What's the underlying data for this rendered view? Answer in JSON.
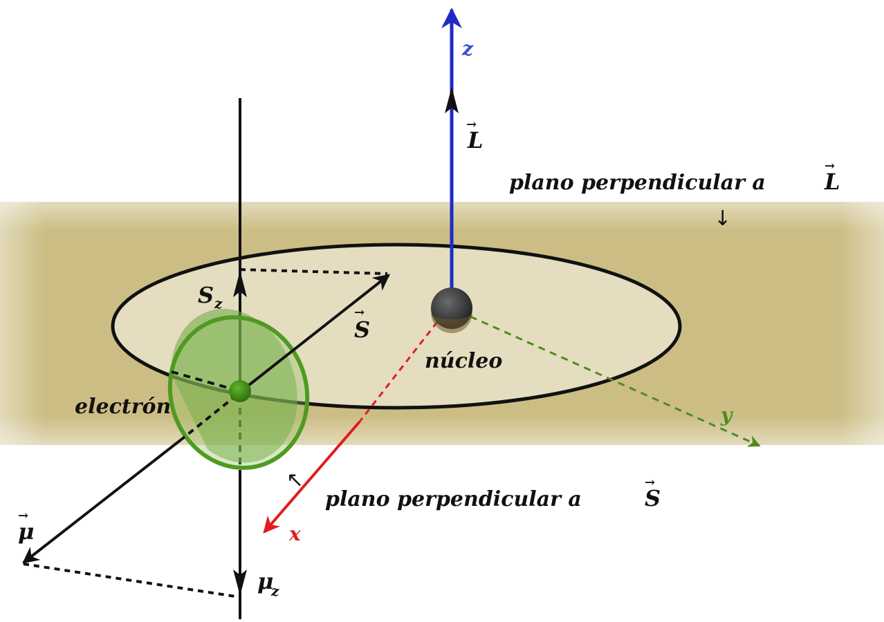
{
  "labels": {
    "z": "z",
    "x": "x",
    "y": "y",
    "L_base": "L",
    "S_base": "S",
    "mu_base": "μ",
    "vec_arrow": "→",
    "Sz_base": "S",
    "Sz_sub": "z",
    "muz_base": "μ",
    "muz_sub": "z",
    "nucleus": "núcleo",
    "electron": "electrón",
    "plane_L_text": "plano perpendicular a",
    "plane_L_vec": "L",
    "plane_S_text": "plano perpendicular a",
    "plane_S_vec": "S",
    "down_arrow": "↓",
    "pointer_arrow": "↖"
  },
  "colors": {
    "plane": "#c6b677",
    "orbit_fill": "#e6dfc6",
    "z_axis": "#1e2bc7",
    "x_axis": "#e21c1c",
    "y_axis": "#4e8a1e",
    "electron": "#3f8e16",
    "spin_disc": "#6ea840",
    "nucleus": "#3a3a3a",
    "ink": "#111111"
  }
}
